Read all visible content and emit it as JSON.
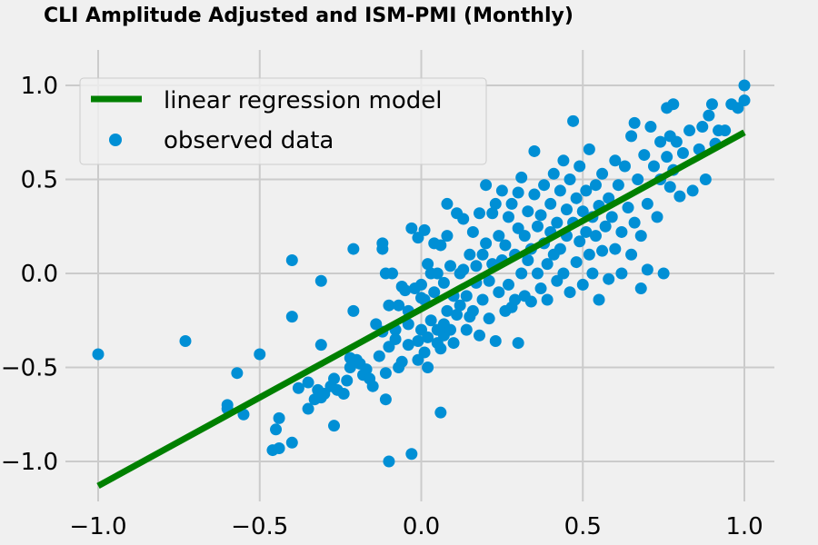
{
  "chart_data": {
    "type": "scatter",
    "title": "CLI Amplitude Adjusted and ISM-PMI (Monthly)",
    "xlabel": "",
    "ylabel": "",
    "xlim": [
      -1.0,
      1.0
    ],
    "ylim": [
      -1.0,
      1.0
    ],
    "xticks": [
      -1.0,
      -0.5,
      0.0,
      0.5,
      1.0
    ],
    "yticks": [
      -1.0,
      -0.5,
      0.0,
      0.5,
      1.0
    ],
    "xtick_labels": [
      "−1.0",
      "−0.5",
      "0.0",
      "0.5",
      "1.0"
    ],
    "ytick_labels": [
      "−1.0",
      "−0.5",
      "0.0",
      "0.5",
      "1.0"
    ],
    "grid": true,
    "legend_position": "top-left",
    "regression": {
      "name": "linear regression model",
      "color": "#008000",
      "x": [
        -1.0,
        1.0
      ],
      "y": [
        -1.13,
        0.75
      ]
    },
    "scatter": {
      "name": "observed data",
      "color": "#008fd5",
      "points": [
        [
          -1.0,
          -0.43
        ],
        [
          -0.73,
          -0.36
        ],
        [
          -0.6,
          -0.7
        ],
        [
          -0.6,
          -0.72
        ],
        [
          -0.57,
          -0.53
        ],
        [
          -0.55,
          -0.75
        ],
        [
          -0.5,
          -0.43
        ],
        [
          -0.46,
          -0.94
        ],
        [
          -0.45,
          -0.83
        ],
        [
          -0.44,
          -0.77
        ],
        [
          -0.44,
          -0.93
        ],
        [
          -0.4,
          -0.9
        ],
        [
          -0.4,
          0.07
        ],
        [
          -0.4,
          -0.23
        ],
        [
          -0.38,
          -0.61
        ],
        [
          -0.35,
          -0.58
        ],
        [
          -0.35,
          -0.72
        ],
        [
          -0.33,
          -0.67
        ],
        [
          -0.32,
          -0.62
        ],
        [
          -0.31,
          -0.66
        ],
        [
          -0.31,
          -0.38
        ],
        [
          -0.31,
          -0.04
        ],
        [
          -0.3,
          -0.64
        ],
        [
          -0.28,
          -0.6
        ],
        [
          -0.27,
          -0.56
        ],
        [
          -0.27,
          -0.81
        ],
        [
          -0.26,
          -0.62
        ],
        [
          -0.24,
          -0.64
        ],
        [
          -0.23,
          -0.57
        ],
        [
          -0.22,
          -0.5
        ],
        [
          -0.22,
          -0.45
        ],
        [
          -0.21,
          -0.2
        ],
        [
          -0.21,
          0.13
        ],
        [
          -0.2,
          -0.46
        ],
        [
          -0.19,
          -0.48
        ],
        [
          -0.18,
          -0.54
        ],
        [
          -0.17,
          -0.51
        ],
        [
          -0.16,
          -0.56
        ],
        [
          -0.15,
          -0.6
        ],
        [
          -0.14,
          -0.27
        ],
        [
          -0.13,
          -0.44
        ],
        [
          -0.12,
          -0.31
        ],
        [
          -0.12,
          0.13
        ],
        [
          -0.12,
          0.16
        ],
        [
          -0.11,
          -0.67
        ],
        [
          -0.11,
          -0.53
        ],
        [
          -0.11,
          0.0
        ],
        [
          -0.1,
          -0.39
        ],
        [
          -0.1,
          -1.0
        ],
        [
          -0.1,
          -0.17
        ],
        [
          -0.09,
          0.0
        ],
        [
          -0.08,
          -0.3
        ],
        [
          -0.08,
          -0.35
        ],
        [
          -0.07,
          -0.17
        ],
        [
          -0.07,
          -0.5
        ],
        [
          -0.06,
          -0.47
        ],
        [
          -0.06,
          -0.07
        ],
        [
          -0.05,
          -0.09
        ],
        [
          -0.04,
          -0.27
        ],
        [
          -0.04,
          -0.38
        ],
        [
          -0.04,
          -0.2
        ],
        [
          -0.03,
          -0.96
        ],
        [
          -0.03,
          0.24
        ],
        [
          -0.02,
          -0.08
        ],
        [
          -0.01,
          -0.46
        ],
        [
          -0.01,
          -0.36
        ],
        [
          -0.01,
          0.19
        ],
        [
          0.0,
          -0.3
        ],
        [
          0.0,
          -0.06
        ],
        [
          0.0,
          -0.13
        ],
        [
          0.01,
          0.23
        ],
        [
          0.01,
          -0.42
        ],
        [
          0.01,
          -0.14
        ],
        [
          0.02,
          0.05
        ],
        [
          0.02,
          -0.34
        ],
        [
          0.02,
          -0.5
        ],
        [
          0.03,
          0.0
        ],
        [
          0.03,
          -0.25
        ],
        [
          0.04,
          -0.1
        ],
        [
          0.04,
          0.16
        ],
        [
          0.05,
          -0.37
        ],
        [
          0.05,
          -0.3
        ],
        [
          0.05,
          0.0
        ],
        [
          0.06,
          -0.74
        ],
        [
          0.06,
          -0.4
        ],
        [
          0.06,
          0.15
        ],
        [
          0.07,
          -0.27
        ],
        [
          0.07,
          -0.33
        ],
        [
          0.07,
          -0.05
        ],
        [
          0.08,
          0.2
        ],
        [
          0.08,
          0.37
        ],
        [
          0.08,
          -0.2
        ],
        [
          0.09,
          -0.3
        ],
        [
          0.09,
          0.04
        ],
        [
          0.1,
          -0.37
        ],
        [
          0.1,
          -0.12
        ],
        [
          0.11,
          0.32
        ],
        [
          0.11,
          -0.22
        ],
        [
          0.12,
          0.0
        ],
        [
          0.12,
          -0.17
        ],
        [
          0.13,
          0.29
        ],
        [
          0.13,
          0.02
        ],
        [
          0.14,
          -0.3
        ],
        [
          0.14,
          -0.12
        ],
        [
          0.15,
          0.1
        ],
        [
          0.15,
          -0.23
        ],
        [
          0.16,
          -0.2
        ],
        [
          0.16,
          0.22
        ],
        [
          0.17,
          0.04
        ],
        [
          0.17,
          -0.05
        ],
        [
          0.18,
          0.32
        ],
        [
          0.18,
          -0.33
        ],
        [
          0.19,
          -0.14
        ],
        [
          0.19,
          0.1
        ],
        [
          0.2,
          0.47
        ],
        [
          0.2,
          0.16
        ],
        [
          0.21,
          -0.24
        ],
        [
          0.21,
          -0.04
        ],
        [
          0.22,
          0.05
        ],
        [
          0.22,
          0.32
        ],
        [
          0.23,
          0.37
        ],
        [
          0.23,
          -0.36
        ],
        [
          0.24,
          -0.1
        ],
        [
          0.24,
          0.2
        ],
        [
          0.25,
          0.44
        ],
        [
          0.25,
          0.07
        ],
        [
          0.26,
          -0.2
        ],
        [
          0.26,
          0.15
        ],
        [
          0.27,
          0.3
        ],
        [
          0.27,
          -0.06
        ],
        [
          0.28,
          0.37
        ],
        [
          0.28,
          -0.18
        ],
        [
          0.29,
          0.1
        ],
        [
          0.29,
          -0.14
        ],
        [
          0.3,
          0.43
        ],
        [
          0.3,
          0.24
        ],
        [
          0.3,
          -0.37
        ],
        [
          0.31,
          0.0
        ],
        [
          0.31,
          0.51
        ],
        [
          0.32,
          0.2
        ],
        [
          0.32,
          -0.12
        ],
        [
          0.33,
          0.33
        ],
        [
          0.33,
          0.07
        ],
        [
          0.34,
          0.13
        ],
        [
          0.34,
          -0.15
        ],
        [
          0.35,
          0.42
        ],
        [
          0.35,
          0.65
        ],
        [
          0.36,
          0.0
        ],
        [
          0.36,
          0.25
        ],
        [
          0.37,
          -0.08
        ],
        [
          0.37,
          0.31
        ],
        [
          0.38,
          0.16
        ],
        [
          0.38,
          0.47
        ],
        [
          0.39,
          0.05
        ],
        [
          0.39,
          -0.14
        ],
        [
          0.4,
          0.37
        ],
        [
          0.4,
          0.22
        ],
        [
          0.41,
          0.53
        ],
        [
          0.41,
          0.1
        ],
        [
          0.42,
          -0.04
        ],
        [
          0.42,
          0.27
        ],
        [
          0.43,
          0.44
        ],
        [
          0.43,
          0.13
        ],
        [
          0.44,
          0.0
        ],
        [
          0.44,
          0.6
        ],
        [
          0.45,
          0.34
        ],
        [
          0.45,
          0.2
        ],
        [
          0.46,
          -0.1
        ],
        [
          0.46,
          0.5
        ],
        [
          0.47,
          0.27
        ],
        [
          0.47,
          0.81
        ],
        [
          0.48,
          0.06
        ],
        [
          0.48,
          0.4
        ],
        [
          0.49,
          0.17
        ],
        [
          0.49,
          0.57
        ],
        [
          0.5,
          0.33
        ],
        [
          0.5,
          -0.06
        ],
        [
          0.51,
          0.22
        ],
        [
          0.51,
          0.44
        ],
        [
          0.52,
          0.1
        ],
        [
          0.52,
          0.66
        ],
        [
          0.53,
          0.3
        ],
        [
          0.53,
          0.0
        ],
        [
          0.54,
          0.47
        ],
        [
          0.54,
          0.2
        ],
        [
          0.55,
          0.36
        ],
        [
          0.55,
          -0.14
        ],
        [
          0.56,
          0.53
        ],
        [
          0.56,
          0.12
        ],
        [
          0.57,
          0.25
        ],
        [
          0.58,
          0.4
        ],
        [
          0.58,
          -0.03
        ],
        [
          0.59,
          0.3
        ],
        [
          0.6,
          0.6
        ],
        [
          0.6,
          0.13
        ],
        [
          0.61,
          0.47
        ],
        [
          0.62,
          0.22
        ],
        [
          0.62,
          0.0
        ],
        [
          0.63,
          0.57
        ],
        [
          0.64,
          0.35
        ],
        [
          0.65,
          0.73
        ],
        [
          0.65,
          0.1
        ],
        [
          0.66,
          0.8
        ],
        [
          0.66,
          0.27
        ],
        [
          0.67,
          0.5
        ],
        [
          0.68,
          0.2
        ],
        [
          0.68,
          -0.08
        ],
        [
          0.69,
          0.63
        ],
        [
          0.7,
          0.37
        ],
        [
          0.7,
          0.02
        ],
        [
          0.71,
          0.78
        ],
        [
          0.72,
          0.57
        ],
        [
          0.73,
          0.3
        ],
        [
          0.74,
          0.7
        ],
        [
          0.74,
          0.5
        ],
        [
          0.75,
          0.0
        ],
        [
          0.76,
          0.88
        ],
        [
          0.76,
          0.62
        ],
        [
          0.77,
          0.46
        ],
        [
          0.77,
          0.73
        ],
        [
          0.78,
          0.9
        ],
        [
          0.78,
          0.55
        ],
        [
          0.79,
          0.7
        ],
        [
          0.8,
          0.41
        ],
        [
          0.81,
          0.64
        ],
        [
          0.83,
          0.76
        ],
        [
          0.84,
          0.44
        ],
        [
          0.86,
          0.66
        ],
        [
          0.87,
          0.78
        ],
        [
          0.88,
          0.5
        ],
        [
          0.89,
          0.84
        ],
        [
          0.9,
          0.9
        ],
        [
          0.91,
          0.69
        ],
        [
          0.92,
          0.76
        ],
        [
          0.94,
          0.76
        ],
        [
          0.96,
          0.9
        ],
        [
          0.98,
          0.88
        ],
        [
          1.0,
          1.0
        ],
        [
          1.0,
          0.92
        ]
      ]
    }
  }
}
